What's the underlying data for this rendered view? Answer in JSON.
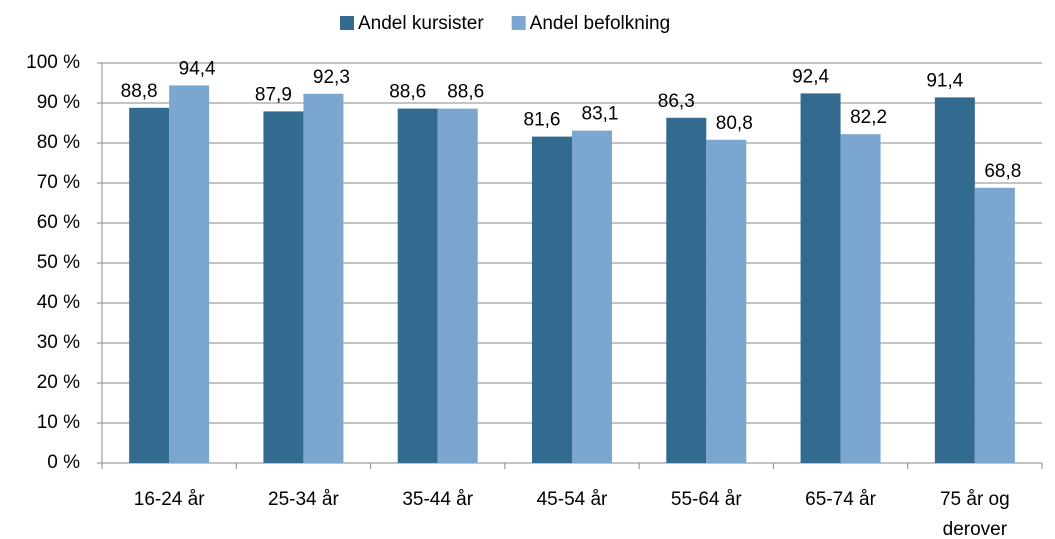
{
  "chart_data": {
    "type": "bar",
    "categories": [
      "16-24 år",
      "25-34 år",
      "35-44 år",
      "45-54 år",
      "55-64 år",
      "65-74 år",
      "75 år og derover"
    ],
    "series": [
      {
        "name": "Andel kursister",
        "color": "#336a90",
        "values": [
          88.8,
          87.9,
          88.6,
          81.6,
          86.3,
          92.4,
          91.4
        ],
        "value_labels": [
          "88,8",
          "87,9",
          "88,6",
          "81,6",
          "86,3",
          "92,4",
          "91,4"
        ]
      },
      {
        "name": "Andel befolkning",
        "color": "#7aa6cf",
        "values": [
          94.4,
          92.3,
          88.6,
          83.1,
          80.8,
          82.2,
          68.8
        ],
        "value_labels": [
          "94,4",
          "92,3",
          "88,6",
          "83,1",
          "80,8",
          "82,2",
          "68,8"
        ]
      }
    ],
    "ylim": [
      0,
      100
    ],
    "yticks": [
      {
        "value": 0,
        "label": "0 %"
      },
      {
        "value": 10,
        "label": "10 %"
      },
      {
        "value": 20,
        "label": "20 %"
      },
      {
        "value": 30,
        "label": "30 %"
      },
      {
        "value": 40,
        "label": "40 %"
      },
      {
        "value": 50,
        "label": "50 %"
      },
      {
        "value": 60,
        "label": "60 %"
      },
      {
        "value": 70,
        "label": "70 %"
      },
      {
        "value": 80,
        "label": "80 %"
      },
      {
        "value": 90,
        "label": "90 %"
      },
      {
        "value": 100,
        "label": "100 %"
      }
    ],
    "grid": true,
    "legend": "top"
  }
}
